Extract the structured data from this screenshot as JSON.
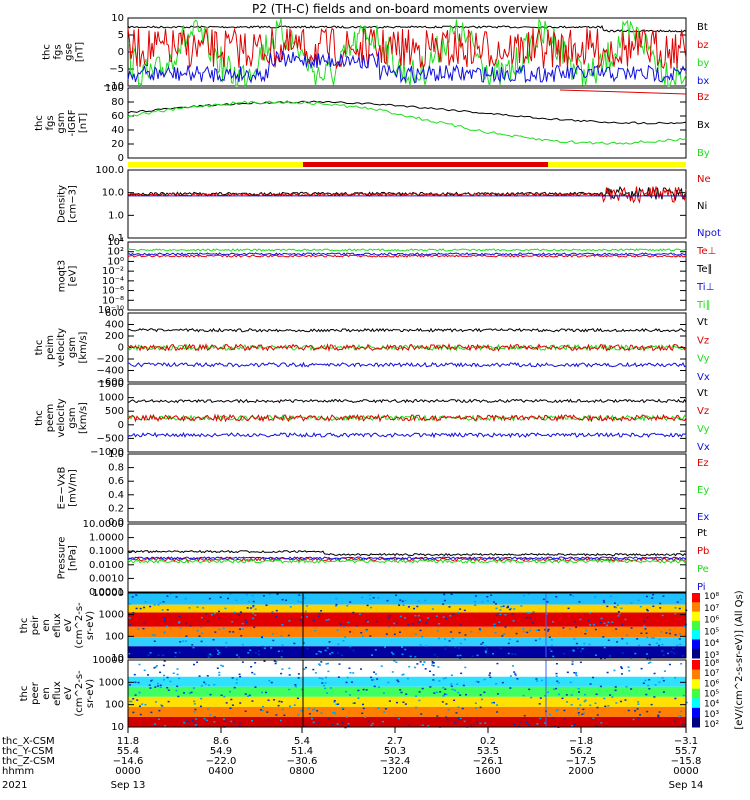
{
  "title": "P2 (TH-C) fields and on-board moments overview",
  "colors": {
    "black": "#000000",
    "red": "#e00000",
    "green": "#20dd20",
    "blue": "#1010e0",
    "yellow": "#ffff00"
  },
  "chart_data": [
    {
      "type": "line",
      "ylabel": [
        "thc",
        "fgs",
        "gse",
        "[nT]"
      ],
      "ylim": [
        -10,
        10
      ],
      "yticks": [
        "10",
        "5",
        "0",
        "−5",
        "−10"
      ],
      "series": [
        {
          "name": "Bt",
          "color": "black"
        },
        {
          "name": "bz",
          "color": "red"
        },
        {
          "name": "by",
          "color": "green"
        },
        {
          "name": "bx",
          "color": "blue"
        }
      ]
    },
    {
      "type": "line",
      "ylabel": [
        "thc",
        "fgs",
        "gsm",
        "-IGRF",
        "[nT]"
      ],
      "ylim": [
        0,
        100
      ],
      "yticks": [
        "100",
        "80",
        "60",
        "40",
        "20",
        "0"
      ],
      "series": [
        {
          "name": "Bz",
          "color": "red"
        },
        {
          "name": "Bx",
          "color": "black"
        },
        {
          "name": "By",
          "color": "green"
        }
      ]
    },
    {
      "type": "line",
      "ylabel": [
        "Density",
        "[cm−3]"
      ],
      "yticks": [
        "100.0",
        "10.0",
        "1.0",
        "0.1"
      ],
      "series": [
        {
          "name": "Ne",
          "color": "red"
        },
        {
          "name": "Ni",
          "color": "black"
        },
        {
          "name": "Npot",
          "color": "blue"
        }
      ]
    },
    {
      "type": "line",
      "ylabel": [
        "moqt3",
        "[eV]"
      ],
      "yticks": [
        "10⁴",
        "10²",
        "10⁰",
        "10⁻²",
        "10⁻⁴",
        "10⁻⁶",
        "10⁻⁸",
        "10⁻¹⁰"
      ],
      "series": [
        {
          "name": "Te⊥",
          "color": "red"
        },
        {
          "name": "Te∥",
          "color": "black"
        },
        {
          "name": "Ti⊥",
          "color": "blue"
        },
        {
          "name": "Ti∥",
          "color": "green"
        }
      ]
    },
    {
      "type": "line",
      "ylabel": [
        "thc",
        "peim",
        "velocity",
        "gsm",
        "[km/s]"
      ],
      "yticks": [
        "600",
        "400",
        "200",
        "0",
        "−200",
        "−400",
        "−600"
      ],
      "series": [
        {
          "name": "Vt",
          "color": "black"
        },
        {
          "name": "Vz",
          "color": "red"
        },
        {
          "name": "Vy",
          "color": "green"
        },
        {
          "name": "Vx",
          "color": "blue"
        }
      ]
    },
    {
      "type": "line",
      "ylabel": [
        "thc",
        "peem",
        "velocity",
        "gsm",
        "[km/s]"
      ],
      "yticks": [
        "1500",
        "1000",
        "500",
        "0",
        "−500",
        "−1000"
      ],
      "series": [
        {
          "name": "Vt",
          "color": "black"
        },
        {
          "name": "Vz",
          "color": "red"
        },
        {
          "name": "Vy",
          "color": "green"
        },
        {
          "name": "Vx",
          "color": "blue"
        }
      ]
    },
    {
      "type": "line",
      "ylabel": [
        "E=−VxB",
        "[mV/m]"
      ],
      "yticks": [
        "1.0",
        "0.8",
        "0.6",
        "0.4",
        "0.2",
        "0.0"
      ],
      "series": [
        {
          "name": "Ez",
          "color": "red"
        },
        {
          "name": "Ey",
          "color": "green"
        },
        {
          "name": "Ex",
          "color": "blue"
        }
      ]
    },
    {
      "type": "line",
      "ylabel": [
        "Pressure",
        "[nPa]"
      ],
      "yticks": [
        "10.0000",
        "1.0000",
        "0.1000",
        "0.0100",
        "0.0010",
        "0.0001"
      ],
      "series": [
        {
          "name": "Pt",
          "color": "black"
        },
        {
          "name": "Pb",
          "color": "red"
        },
        {
          "name": "Pe",
          "color": "green"
        },
        {
          "name": "Pi",
          "color": "blue"
        }
      ]
    },
    {
      "type": "heatmap",
      "ylabel": [
        "thc",
        "peir",
        "en",
        "eflux",
        "eV",
        "(cm^2-s-",
        "sr-eV)"
      ],
      "yticks": [
        "10000",
        "1000",
        "100",
        "10"
      ],
      "colorbar": [
        "10⁸",
        "10⁷",
        "10⁶",
        "10⁵",
        "10⁴",
        "10³"
      ]
    },
    {
      "type": "heatmap",
      "ylabel": [
        "thc",
        "peer",
        "en",
        "eflux",
        "eV",
        "(cm^2-s-",
        "sr-eV)"
      ],
      "yticks": [
        "10000",
        "1000",
        "100",
        "10"
      ],
      "colorbar": [
        "10⁸",
        "10⁷",
        "10⁶",
        "10⁵",
        "10⁴",
        "10³",
        "10²"
      ]
    }
  ],
  "colorbar_label": "[eV/(cm^2-s-sr-eV)] (All Qs)",
  "footer": {
    "rows": [
      {
        "label": "thc_X-CSM",
        "values": [
          "11.8",
          "8.6",
          "5.4",
          "2.7",
          "0.2",
          "−1.8",
          "−3.1"
        ]
      },
      {
        "label": "thc_Y-CSM",
        "values": [
          "55.4",
          "54.9",
          "51.4",
          "50.3",
          "53.5",
          "56.2",
          "55.7"
        ]
      },
      {
        "label": "thc_Z-CSM",
        "values": [
          "−14.6",
          "−22.0",
          "−30.6",
          "−32.4",
          "−26.1",
          "−17.5",
          "−15.8"
        ]
      },
      {
        "label": "hhmm",
        "values": [
          "0000",
          "0400",
          "0800",
          "1200",
          "1600",
          "2000",
          "0000"
        ]
      }
    ],
    "year": "2021",
    "date_start": "Sep 13",
    "date_end": "Sep 14"
  }
}
